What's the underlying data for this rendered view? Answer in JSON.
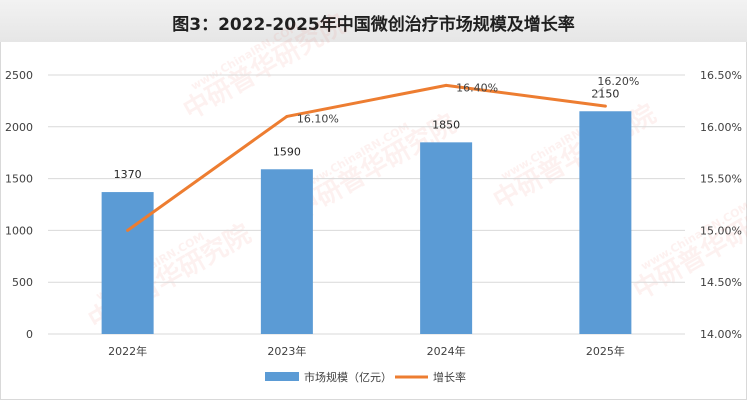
{
  "title": "图3：2022-2025年中国微创治疗市场规模及增长率",
  "watermark": {
    "url": "www.ChinaIRN.COM",
    "logo": "CIRN",
    "name": "中研普华研究院"
  },
  "colors": {
    "bar": "#5b9bd5",
    "line": "#ed7d31",
    "grid": "#d9d9d9",
    "text": "#404040"
  },
  "chart_data": {
    "type": "bar+line",
    "categories": [
      "2022年",
      "2023年",
      "2024年",
      "2025年"
    ],
    "series": [
      {
        "name": "市场规模（亿元）",
        "type": "bar",
        "axis": "left",
        "values": [
          1370,
          1590,
          1850,
          2150
        ],
        "labels": [
          "1370",
          "1590",
          "1850",
          "2150"
        ]
      },
      {
        "name": "增长率",
        "type": "line",
        "axis": "right",
        "values": [
          15.0,
          16.1,
          16.4,
          16.2
        ],
        "labels": [
          "",
          "16.10%",
          "16.40%",
          "16.20%"
        ]
      }
    ],
    "y_left": {
      "min": 0,
      "max": 2500,
      "ticks": [
        "0",
        "500",
        "1000",
        "1500",
        "2000",
        "2500"
      ]
    },
    "y_right": {
      "min": 14.0,
      "max": 16.5,
      "ticks": [
        "14.00%",
        "14.50%",
        "15.00%",
        "15.50%",
        "16.00%",
        "16.50%"
      ]
    },
    "grid": true,
    "legend_position": "bottom"
  }
}
